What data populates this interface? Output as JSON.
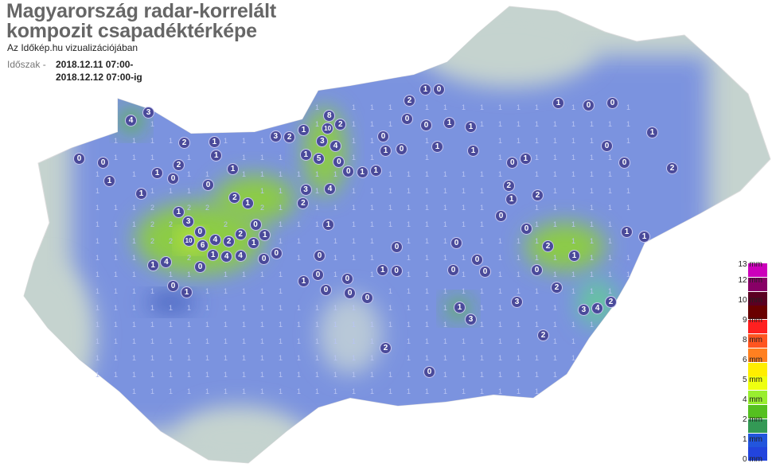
{
  "header": {
    "title_line1": "Magyarország radar-korrelált",
    "title_line2": "kompozit csapadéktérképe",
    "subtitle": "Az Időkép.hu vizualizációjában",
    "period_label": "Időszak -",
    "period_from": "2018.12.11 07:00-",
    "period_to": "2018.12.12 07:00-ig"
  },
  "legend": {
    "swatches": [
      "#cc00bb",
      "#880066",
      "#5a0022",
      "#6a0000",
      "#ff2020",
      "#ff5520",
      "#ff8020",
      "#ffee00",
      "#eeff10",
      "#99ee30",
      "#55c020",
      "#339955",
      "#2255dd",
      "#2244dd"
    ],
    "labels": [
      "13 mm",
      "12 mm",
      "10 mm",
      "9 mm",
      "8 mm",
      "6 mm",
      "5 mm",
      "4 mm",
      "2 mm",
      "1 mm",
      "0 mm"
    ]
  },
  "colors": {
    "rain_base": "#7890e0",
    "rain_green": "#8ccc44",
    "relief": "#c5d3cf",
    "marker": "#4a4a9a"
  },
  "stations": [
    "4",
    "3",
    "2",
    "1",
    "1",
    "0",
    "0",
    "1",
    "2",
    "1",
    "0",
    "0",
    "1",
    "1",
    "3",
    "2",
    "1",
    "8",
    "10",
    "2",
    "3",
    "4",
    "5",
    "4",
    "3",
    "2",
    "1",
    "0",
    "0",
    "1",
    "1",
    "0",
    "0",
    "1",
    "2",
    "1",
    "0",
    "0",
    "0",
    "1",
    "1",
    "1",
    "1",
    "2",
    "0",
    "1",
    "1",
    "0",
    "0",
    "1",
    "0",
    "0",
    "2",
    "1",
    "2",
    "0",
    "0",
    "1",
    "1",
    "2",
    "1",
    "0",
    "2",
    "3",
    "4",
    "2",
    "1",
    "3",
    "2",
    "3",
    "1",
    "4",
    "1",
    "0",
    "1",
    "0",
    "0",
    "1",
    "2",
    "1",
    "0",
    "0",
    "1",
    "1",
    "0",
    "0",
    "0",
    "0",
    "0",
    "0",
    "3",
    "10",
    "6",
    "4",
    "2",
    "2",
    "4",
    "4",
    "1",
    "1",
    "0",
    "0",
    "0",
    "0",
    "0",
    "0",
    "0",
    "1",
    "2",
    "0"
  ]
}
